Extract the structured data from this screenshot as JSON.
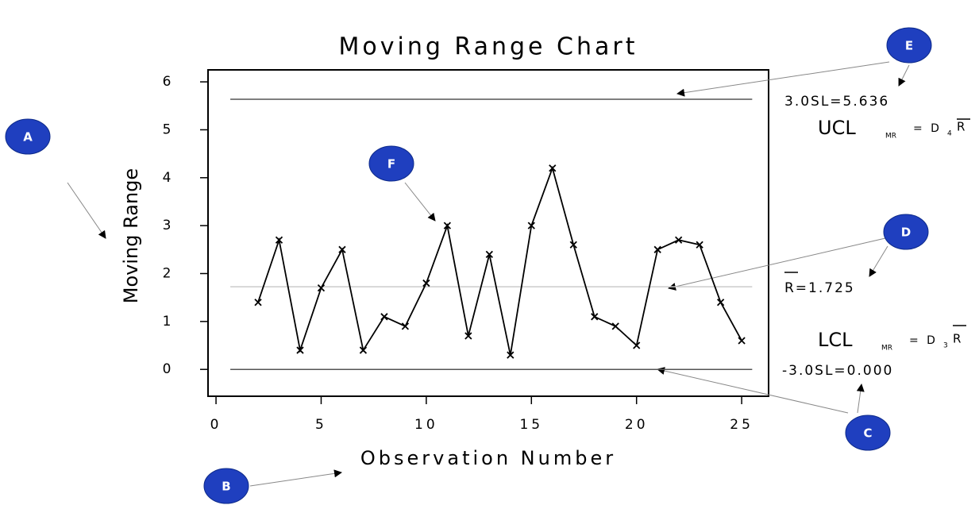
{
  "chart_data": {
    "type": "line",
    "title": "Moving Range Chart",
    "xlabel": "Observation Number",
    "ylabel": "Moving Range",
    "x": [
      2,
      3,
      4,
      5,
      6,
      7,
      8,
      9,
      10,
      11,
      12,
      13,
      14,
      15,
      16,
      17,
      18,
      19,
      20,
      21,
      22,
      23,
      24,
      25
    ],
    "values": [
      1.4,
      2.7,
      0.4,
      1.7,
      2.5,
      0.4,
      1.1,
      0.9,
      1.8,
      3.0,
      0.7,
      2.4,
      0.3,
      3.0,
      4.2,
      2.6,
      1.1,
      0.9,
      0.5,
      2.5,
      2.7,
      2.6,
      1.4,
      0.6
    ],
    "color": "#000000",
    "xlim": [
      -0.38,
      26.28
    ],
    "xticks": [
      0,
      5,
      10,
      15,
      20,
      25
    ],
    "ylim": [
      -0.56,
      6.25
    ],
    "yticks": [
      0,
      1,
      2,
      3,
      4,
      5,
      6
    ],
    "reference_lines": [
      {
        "value": 5.636,
        "label": "3.0SL=5.636",
        "color": "#555555"
      },
      {
        "value": 1.725,
        "label": "R=1.725",
        "color": "#cccccc"
      },
      {
        "value": 0,
        "label": "-3.0SL=0.000",
        "color": "#555555"
      }
    ],
    "formulas": [
      {
        "name": "UCL",
        "sub": "MR",
        "eq": "= D",
        "index": "4",
        "bar": "R"
      },
      {
        "name": "LCL",
        "sub": "MR",
        "eq": "= D",
        "index": "3",
        "bar": "R"
      }
    ],
    "callouts": [
      "A",
      "B",
      "C",
      "D",
      "E",
      "F"
    ]
  }
}
